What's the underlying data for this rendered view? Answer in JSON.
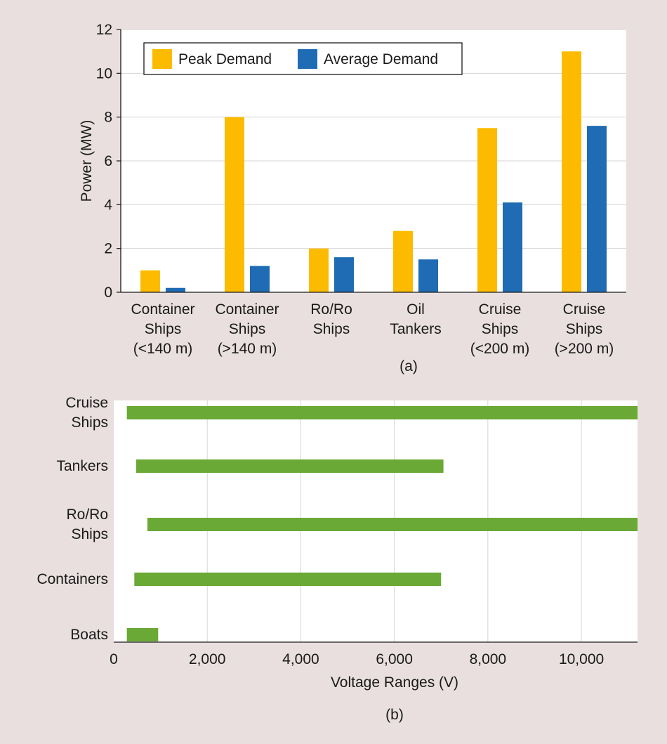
{
  "colors": {
    "background": "#e8dfde",
    "plot_background": "#ffffff",
    "peak": "#fdbb00",
    "average": "#1f6cb5",
    "range_bar": "#6aa935",
    "grid": "#d6d6d6",
    "axis": "#1a1a1a"
  },
  "chart_data": [
    {
      "type": "bar",
      "panel_label": "(a)",
      "title": "",
      "xlabel": "",
      "ylabel": "Power (MW)",
      "ylim": [
        0,
        12
      ],
      "yticks": [
        0,
        2,
        4,
        6,
        8,
        10,
        12
      ],
      "grid": true,
      "legend_position": "top-left",
      "categories": [
        [
          "Container",
          "Ships",
          "(<140 m)"
        ],
        [
          "Container",
          "Ships",
          "(>140 m)"
        ],
        [
          "Ro/Ro",
          "Ships"
        ],
        [
          "Oil",
          "Tankers"
        ],
        [
          "Cruise",
          "Ships",
          "(<200 m)"
        ],
        [
          "Cruise",
          "Ships",
          "(>200 m)"
        ]
      ],
      "series": [
        {
          "name": "Peak Demand",
          "color": "#fdbb00",
          "values": [
            1.0,
            8.0,
            2.0,
            2.8,
            7.5,
            11.0
          ]
        },
        {
          "name": "Average Demand",
          "color": "#1f6cb5",
          "values": [
            0.2,
            1.2,
            1.6,
            1.5,
            4.1,
            7.6
          ]
        }
      ]
    },
    {
      "type": "bar",
      "orientation": "horizontal-range",
      "panel_label": "(b)",
      "title": "",
      "xlabel": "Voltage Ranges (V)",
      "ylabel": "",
      "xlim": [
        0,
        11200
      ],
      "xticks": [
        0,
        2000,
        4000,
        6000,
        8000,
        10000
      ],
      "xtick_labels": [
        "0",
        "2,000",
        "4,000",
        "6,000",
        "8,000",
        "10,000"
      ],
      "grid": true,
      "categories": [
        [
          "Cruise",
          "Ships"
        ],
        [
          "Tankers"
        ],
        [
          "Ro/Ro",
          "Ships"
        ],
        [
          "Containers"
        ],
        [
          "Boats"
        ]
      ],
      "ranges": [
        {
          "start": 280,
          "end": 11200
        },
        {
          "start": 480,
          "end": 7050
        },
        {
          "start": 720,
          "end": 11200
        },
        {
          "start": 440,
          "end": 7000
        },
        {
          "start": 280,
          "end": 950
        }
      ]
    }
  ]
}
